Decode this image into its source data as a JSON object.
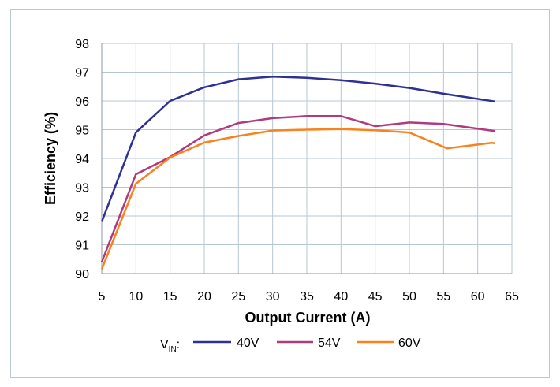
{
  "chart_data": {
    "type": "line",
    "xlabel": "Output Current (A)",
    "ylabel": "Efficiency (%)",
    "xlim": [
      5,
      65
    ],
    "ylim": [
      90,
      98
    ],
    "xticks": [
      5,
      10,
      15,
      20,
      25,
      30,
      35,
      40,
      45,
      50,
      55,
      60,
      65
    ],
    "yticks": [
      90,
      91,
      92,
      93,
      94,
      95,
      96,
      97,
      98
    ],
    "grid": true,
    "legend": {
      "title_main": "V",
      "title_sub": "IN",
      "title_suffix": ":",
      "placement": "bottom"
    },
    "series": [
      {
        "name": "40V",
        "color": "#2e3192",
        "x": [
          5,
          10,
          15,
          20,
          25,
          30,
          35,
          40,
          45,
          50,
          55,
          62.5
        ],
        "y": [
          91.8,
          94.9,
          96.0,
          96.47,
          96.75,
          96.84,
          96.8,
          96.72,
          96.6,
          96.45,
          96.25,
          95.98
        ]
      },
      {
        "name": "54V",
        "color": "#b03a7e",
        "x": [
          5,
          10,
          15,
          20,
          25,
          30,
          35,
          40,
          45,
          50,
          55,
          62.5
        ],
        "y": [
          90.4,
          93.45,
          94.05,
          94.8,
          95.23,
          95.4,
          95.47,
          95.47,
          95.12,
          95.25,
          95.2,
          94.95
        ]
      },
      {
        "name": "60V",
        "color": "#f7821e",
        "x": [
          5,
          10,
          15,
          20,
          25,
          30,
          35,
          40,
          45,
          50,
          55.5,
          62,
          62.5
        ],
        "y": [
          90.15,
          93.12,
          94.03,
          94.55,
          94.78,
          94.97,
          95.0,
          95.02,
          94.98,
          94.9,
          94.35,
          94.54,
          94.53
        ]
      }
    ]
  }
}
